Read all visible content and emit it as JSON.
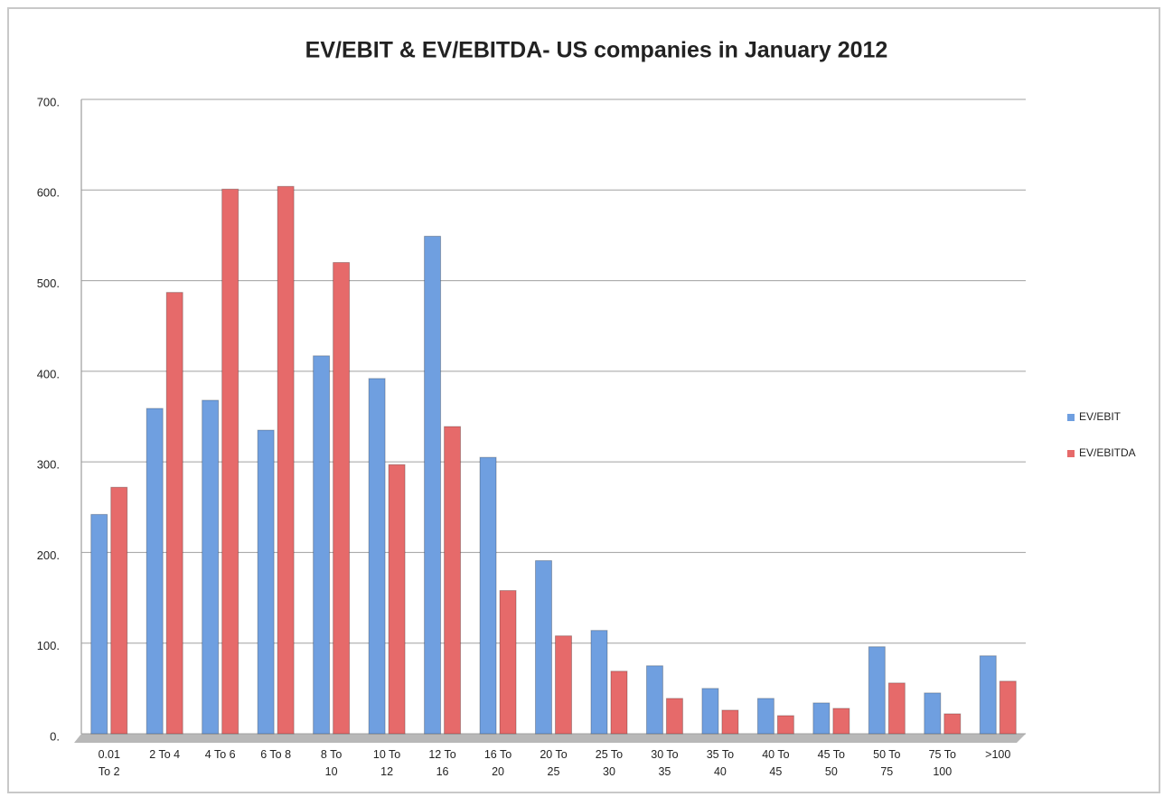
{
  "chart_data": {
    "type": "bar",
    "title": "EV/EBIT & EV/EBITDA- US companies in January 2012",
    "categories": [
      "0.01 To 2",
      "2 To 4",
      "4 To 6",
      "6 To 8",
      "8 To 10",
      "10 To 12",
      "12 To 16",
      "16 To 20",
      "20 To 25",
      "25 To 30",
      "30 To 35",
      "35 To 40",
      "40 To 45",
      "45 To 50",
      "50 To 75",
      "75 To 100",
      ">100"
    ],
    "series": [
      {
        "name": "EV/EBIT",
        "color": "#6f9fe0",
        "values": [
          242,
          359,
          368,
          335,
          417,
          392,
          549,
          305,
          191,
          114,
          75,
          50,
          39,
          34,
          96,
          45,
          86
        ]
      },
      {
        "name": "EV/EBITDA",
        "color": "#e66a6a",
        "values": [
          272,
          487,
          601,
          604,
          520,
          297,
          339,
          158,
          108,
          69,
          39,
          26,
          20,
          28,
          56,
          22,
          58
        ]
      }
    ],
    "ylim": [
      0,
      700
    ],
    "yticks": [
      {
        "value": 0,
        "label": "0."
      },
      {
        "value": 100,
        "label": "100."
      },
      {
        "value": 200,
        "label": "200."
      },
      {
        "value": 300,
        "label": "300."
      },
      {
        "value": 400,
        "label": "400."
      },
      {
        "value": 500,
        "label": "500."
      },
      {
        "value": 600,
        "label": "600."
      },
      {
        "value": 700,
        "label": "700."
      }
    ],
    "grid": true,
    "legend": "right"
  }
}
